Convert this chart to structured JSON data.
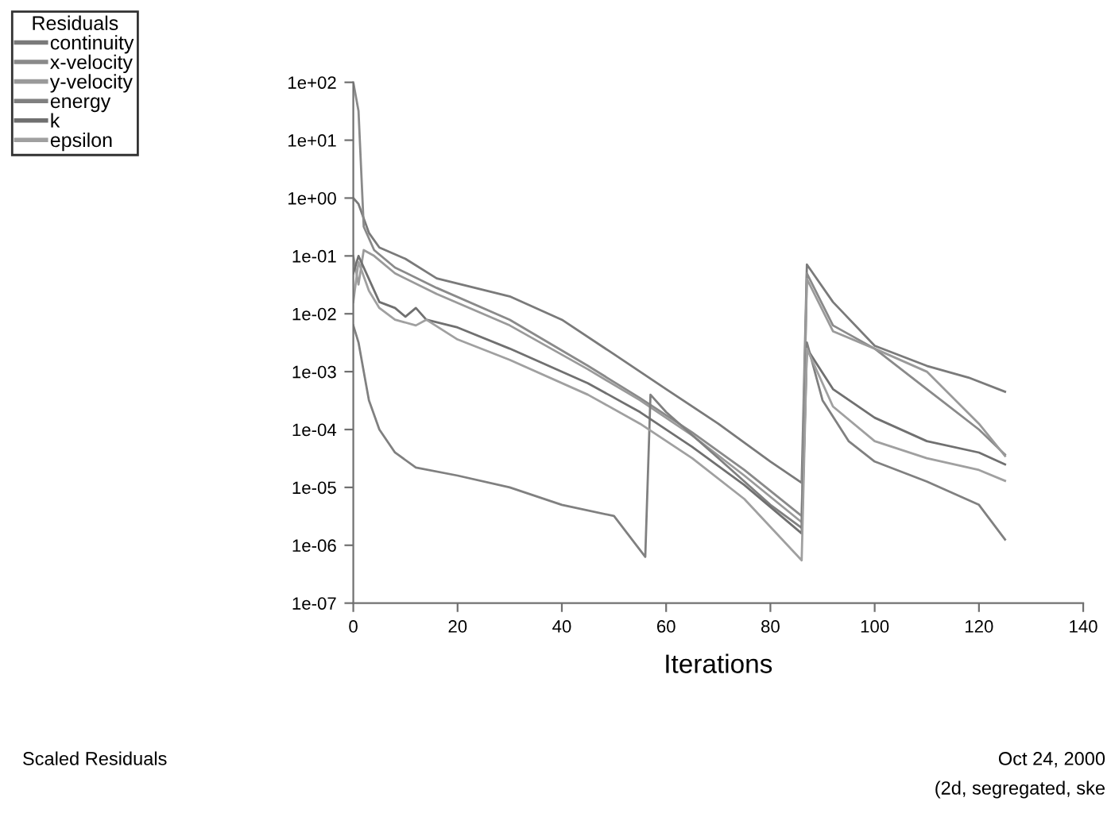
{
  "chart_data": {
    "type": "line",
    "xlabel": "Iterations",
    "legend_title": "Residuals",
    "legend": "top left",
    "log": "y",
    "grid": false,
    "marker": "none",
    "line_style": "solid",
    "xlim": [
      0,
      140
    ],
    "xticks": [
      0,
      20,
      40,
      60,
      80,
      100,
      120,
      140
    ],
    "ylim": [
      1e-07,
      100
    ],
    "yticks": [
      {
        "value": 1e-07,
        "label": "1e-07"
      },
      {
        "value": 1e-06,
        "label": "1e-06"
      },
      {
        "value": 1e-05,
        "label": "1e-05"
      },
      {
        "value": 0.0001,
        "label": "1e-04"
      },
      {
        "value": 0.001,
        "label": "1e-03"
      },
      {
        "value": 0.01,
        "label": "1e-02"
      },
      {
        "value": 0.1,
        "label": "1e-01"
      },
      {
        "value": 1,
        "label": "1e+00"
      },
      {
        "value": 10,
        "label": "1e+01"
      },
      {
        "value": 100,
        "label": "1e+02"
      }
    ],
    "series": [
      {
        "name": "continuity",
        "color": "#7a7a7a",
        "x": [
          0,
          1,
          3,
          5,
          10,
          16,
          30,
          40,
          50,
          60,
          70,
          80,
          86,
          87,
          92,
          100,
          110,
          118,
          125
        ],
        "values": [
          1,
          0.79,
          0.25,
          0.14,
          0.089,
          0.041,
          0.02,
          0.0079,
          0.002,
          0.0005,
          0.000126,
          2.8e-05,
          1.2e-05,
          0.071,
          0.016,
          0.0028,
          0.00126,
          0.00079,
          0.00045
        ]
      },
      {
        "name": "x-velocity",
        "color": "#8a8a8a",
        "x": [
          0,
          1,
          2,
          4,
          8,
          16,
          30,
          45,
          55,
          65,
          75,
          86,
          87,
          92,
          100,
          110,
          120,
          125
        ],
        "values": [
          100,
          32,
          0.32,
          0.126,
          0.063,
          0.028,
          0.0079,
          0.00126,
          0.00035,
          8.9e-05,
          2e-05,
          3.2e-06,
          0.05,
          0.0063,
          0.0025,
          0.0005,
          0.0001,
          3.7e-05
        ]
      },
      {
        "name": "y-velocity",
        "color": "#9a9a9a",
        "x": [
          0,
          1,
          2,
          4,
          8,
          16,
          30,
          45,
          55,
          65,
          75,
          86,
          87,
          92,
          100,
          110,
          120,
          125
        ],
        "values": [
          0.1,
          0.032,
          0.126,
          0.1,
          0.05,
          0.022,
          0.0063,
          0.0011,
          0.00032,
          7.9e-05,
          1.6e-05,
          2.5e-06,
          0.04,
          0.005,
          0.0025,
          0.001,
          0.000126,
          3.5e-05
        ]
      },
      {
        "name": "energy",
        "color": "#808080",
        "x": [
          0,
          1,
          2,
          3,
          5,
          8,
          12,
          20,
          30,
          40,
          50,
          56,
          57,
          60,
          70,
          80,
          86,
          87,
          90,
          95,
          100,
          110,
          120,
          125
        ],
        "values": [
          0.0063,
          0.0032,
          0.001,
          0.00032,
          0.0001,
          4e-05,
          2.2e-05,
          1.6e-05,
          1e-05,
          5e-06,
          3.2e-06,
          6.3e-07,
          0.0004,
          0.0002,
          3.2e-05,
          5e-06,
          2e-06,
          0.0032,
          0.00032,
          6.3e-05,
          2.8e-05,
          1.26e-05,
          5e-06,
          1.26e-06
        ]
      },
      {
        "name": "k",
        "color": "#707070",
        "x": [
          0,
          1,
          3,
          5,
          8,
          10,
          12,
          14,
          20,
          30,
          45,
          55,
          65,
          75,
          86,
          87,
          92,
          100,
          110,
          120,
          125
        ],
        "values": [
          0.05,
          0.1,
          0.04,
          0.016,
          0.0126,
          0.0089,
          0.0126,
          0.0079,
          0.0058,
          0.0025,
          0.00063,
          0.0002,
          5e-05,
          1.1e-05,
          1.6e-06,
          0.0025,
          0.0005,
          0.00016,
          6.3e-05,
          4e-05,
          2.5e-05
        ]
      },
      {
        "name": "epsilon",
        "color": "#a0a0a0",
        "x": [
          0,
          1,
          3,
          5,
          8,
          12,
          14,
          20,
          30,
          45,
          55,
          65,
          75,
          86,
          87,
          92,
          100,
          110,
          120,
          125
        ],
        "values": [
          0.016,
          0.079,
          0.025,
          0.0126,
          0.0079,
          0.0063,
          0.0079,
          0.0036,
          0.0016,
          0.0004,
          0.000126,
          3.2e-05,
          6.3e-06,
          5.5e-07,
          0.0025,
          0.00025,
          6.3e-05,
          3.2e-05,
          2e-05,
          1.3e-05
        ]
      }
    ],
    "annotations": [
      "Scaled Residuals",
      "Oct 24, 2000",
      "(2d, segregated, ske"
    ]
  }
}
